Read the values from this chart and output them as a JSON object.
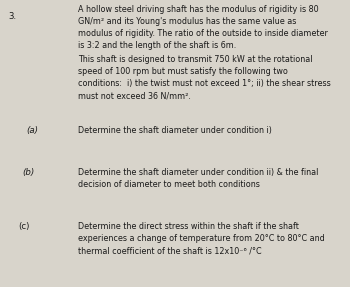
{
  "background_color": "#d8d4cb",
  "number": "3.",
  "paragraph1": "A hollow steel driving shaft has the modulus of rigidity is 80\nGN/m² and its Young's modulus has the same value as\nmodulus of rigidity. The ratio of the outside to inside diameter\nis 3:2 and the length of the shaft is 6m.",
  "paragraph2": "This shaft is designed to transmit 750 kW at the rotational\nspeed of 100 rpm but must satisfy the following two\nconditions:  i) the twist must not exceed 1°; ii) the shear stress\nmust not exceed 36 N/mm².",
  "label_a": "(a)",
  "text_a": "Determine the shaft diameter under condition i)",
  "label_b": "(b)",
  "text_b": "Determine the shaft diameter under condition ii) & the final\ndecision of diameter to meet both conditions",
  "label_c": "(c)",
  "text_c": "Determine the direct stress within the shaft if the shaft\nexperiences a change of temperature from 20°C to 80°C and\nthermal coefficient of the shaft is 12x10⁻⁶ /°C",
  "font_color": "#1a1a1a",
  "font_size_main": 5.8,
  "font_size_label": 6.2,
  "fig_width": 3.5,
  "fig_height": 2.87,
  "dpi": 100
}
